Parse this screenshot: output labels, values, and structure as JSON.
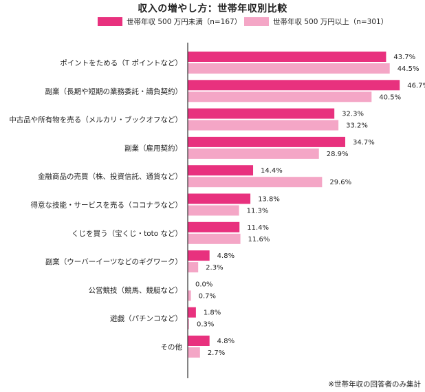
{
  "chart_data": {
    "type": "bar",
    "orientation": "horizontal",
    "title": "収入の増やし方：世帯年収別比較",
    "categories": [
      "ポイントをためる（T ポイントなど）",
      "副業（長期や短期の業務委託・請負契約）",
      "中古品や所有物を売る（メルカリ・ブックオフなど）",
      "副業（雇用契約）",
      "金融商品の売買（株、投資信託、通貨など）",
      "得意な技能・サービスを売る（ココナラなど）",
      "くじを買う（宝くじ・toto など）",
      "副業（ウーバーイーツなどのギグワーク）",
      "公営競技（競馬、競艇など）",
      "遊戯（パチンコなど）",
      "その他"
    ],
    "series": [
      {
        "name": "世帯年収 500 万円未満（n=167）",
        "color": "#e8317e",
        "values": [
          43.7,
          46.7,
          32.3,
          34.7,
          14.4,
          13.8,
          11.4,
          4.8,
          0.0,
          1.8,
          4.8
        ]
      },
      {
        "name": "世帯年収 500 万円以上（n=301）",
        "color": "#f4a6c6",
        "values": [
          44.5,
          40.5,
          33.2,
          28.9,
          29.6,
          11.3,
          11.6,
          2.3,
          0.7,
          0.3,
          2.7
        ]
      }
    ],
    "value_suffix": "%",
    "xlim": [
      0,
      50
    ],
    "grid": false,
    "legend_position": "top",
    "footnote": "※世帯年収の回答者のみ集計"
  }
}
